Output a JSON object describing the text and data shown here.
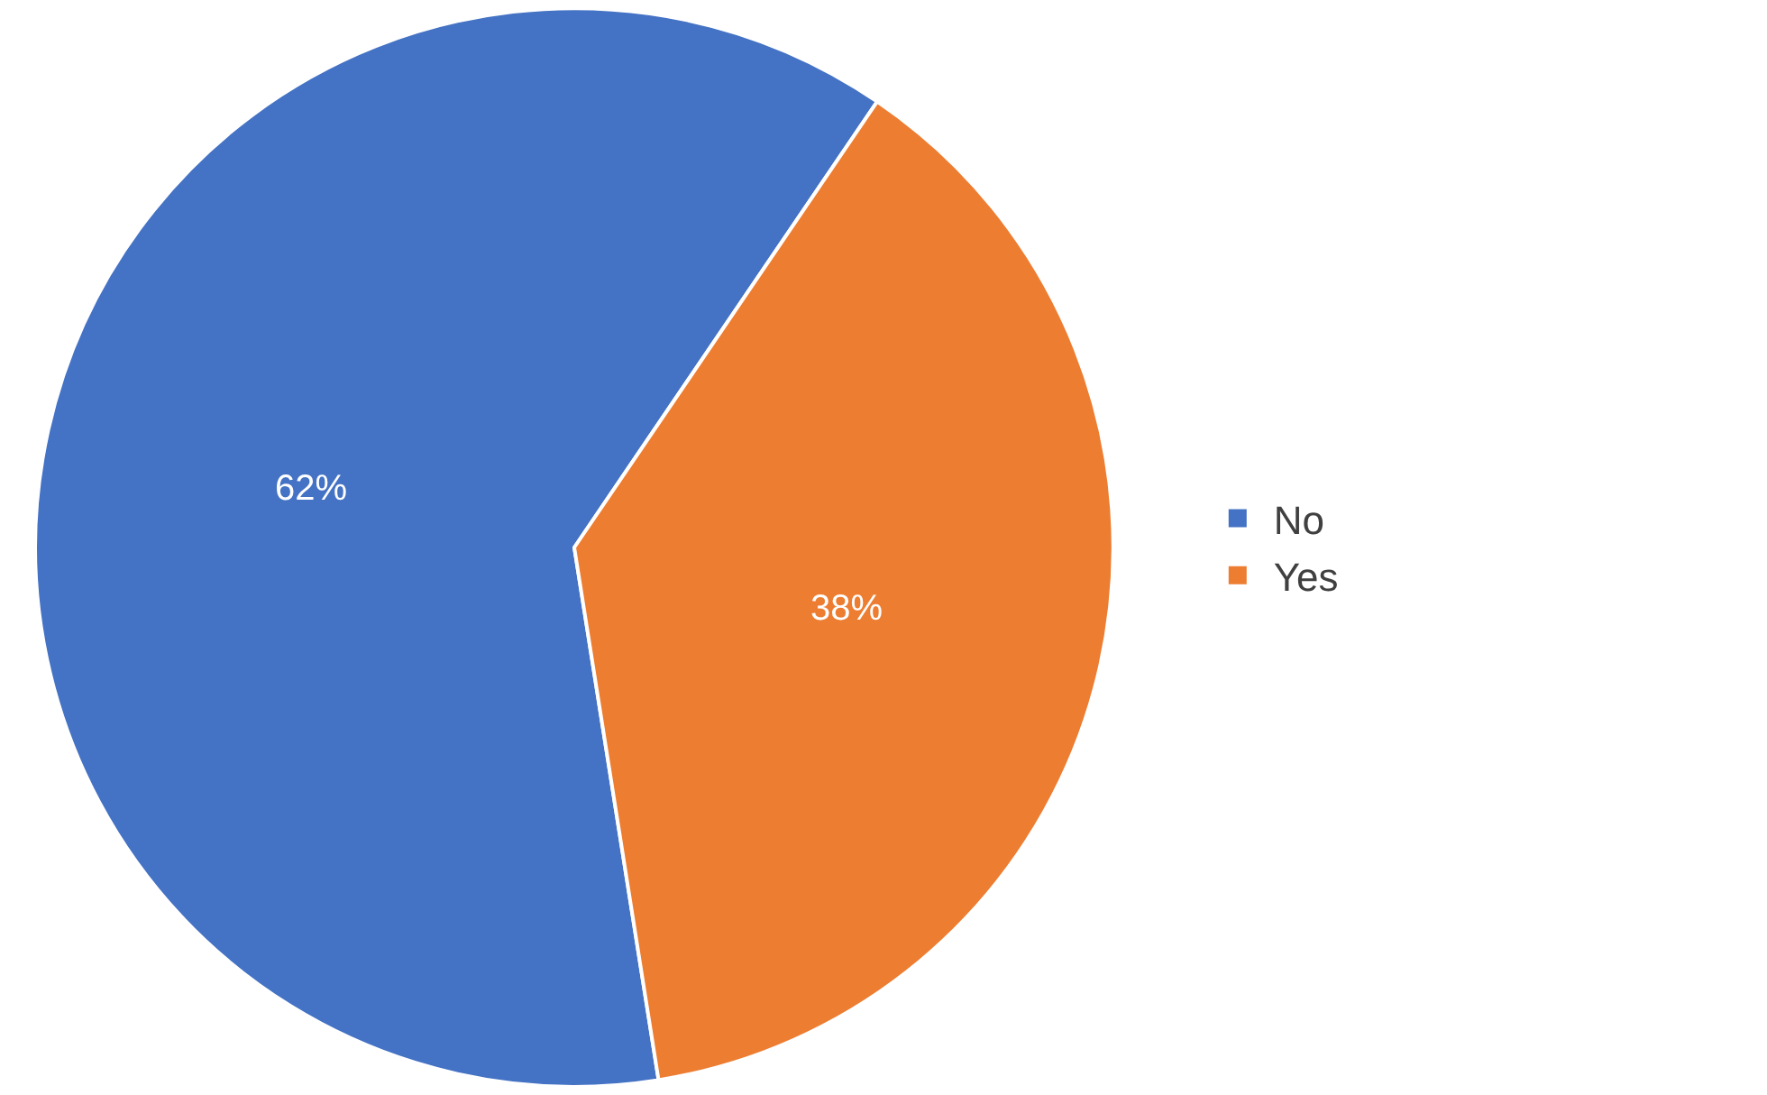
{
  "chart_data": {
    "type": "pie",
    "categories": [
      "No",
      "Yes"
    ],
    "values": [
      62,
      38
    ],
    "colors": [
      "#4472c4",
      "#ed7d31"
    ],
    "value_labels": [
      "62%",
      "38%"
    ],
    "legend": "right"
  }
}
